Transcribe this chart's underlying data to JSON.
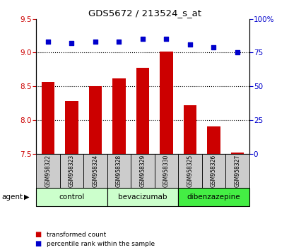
{
  "title": "GDS5672 / 213524_s_at",
  "samples": [
    "GSM958322",
    "GSM958323",
    "GSM958324",
    "GSM958328",
    "GSM958329",
    "GSM958330",
    "GSM958325",
    "GSM958326",
    "GSM958327"
  ],
  "bar_values": [
    8.56,
    8.28,
    8.5,
    8.62,
    8.77,
    9.01,
    8.22,
    7.9,
    7.52
  ],
  "dot_values": [
    83,
    82,
    83,
    83,
    85,
    85,
    81,
    79,
    75
  ],
  "bar_color": "#cc0000",
  "dot_color": "#0000cc",
  "ylim_left": [
    7.5,
    9.5
  ],
  "ylim_right": [
    0,
    100
  ],
  "yticks_left": [
    7.5,
    8.0,
    8.5,
    9.0,
    9.5
  ],
  "yticks_right": [
    0,
    25,
    50,
    75,
    100
  ],
  "groups": [
    {
      "label": "control",
      "start": 0,
      "end": 3,
      "color": "#ccffcc"
    },
    {
      "label": "bevacizumab",
      "start": 3,
      "end": 6,
      "color": "#ccffcc"
    },
    {
      "label": "dibenzazepine",
      "start": 6,
      "end": 9,
      "color": "#44ee44"
    }
  ],
  "grid_dotted_values": [
    8.0,
    8.5,
    9.0
  ],
  "legend_bar_label": "transformed count",
  "legend_dot_label": "percentile rank within the sample",
  "agent_label": "agent",
  "bar_bottom": 7.5,
  "bg_color": "#ffffff",
  "sample_box_color": "#cccccc",
  "right_tick_color": "#0000cc",
  "left_tick_color": "#cc0000"
}
